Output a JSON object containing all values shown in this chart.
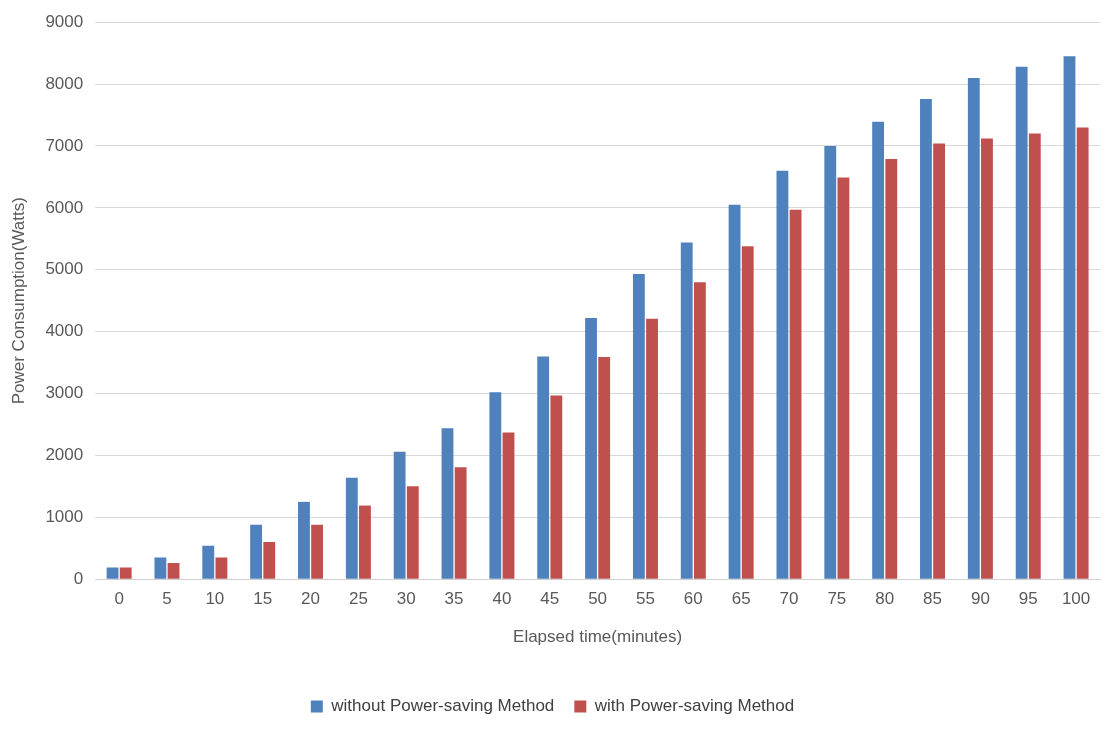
{
  "chart_data": {
    "type": "bar",
    "xlabel": "Elapsed time(minutes)",
    "ylabel": "Power Consumption(Watts)",
    "categories": [
      "0",
      "5",
      "10",
      "15",
      "20",
      "25",
      "30",
      "35",
      "40",
      "45",
      "50",
      "55",
      "60",
      "65",
      "70",
      "75",
      "80",
      "85",
      "90",
      "95",
      "100"
    ],
    "series": [
      {
        "name": "without Power-saving Method",
        "color": "#4f81bd",
        "values": [
          190,
          350,
          540,
          880,
          1250,
          1640,
          2060,
          2440,
          3020,
          3600,
          4220,
          4930,
          5440,
          6050,
          6600,
          7000,
          7390,
          7760,
          8100,
          8280,
          8450
        ]
      },
      {
        "name": "with Power-saving Method",
        "color": "#c0504d",
        "values": [
          190,
          260,
          350,
          600,
          880,
          1190,
          1500,
          1810,
          2370,
          2970,
          3590,
          4210,
          4800,
          5380,
          5970,
          6490,
          6790,
          7040,
          7120,
          7200,
          7300
        ]
      }
    ],
    "ylim": [
      0,
      9000
    ],
    "yticks": [
      0,
      1000,
      2000,
      3000,
      4000,
      5000,
      6000,
      7000,
      8000,
      9000
    ],
    "grid": "y",
    "legend": "bottom"
  }
}
